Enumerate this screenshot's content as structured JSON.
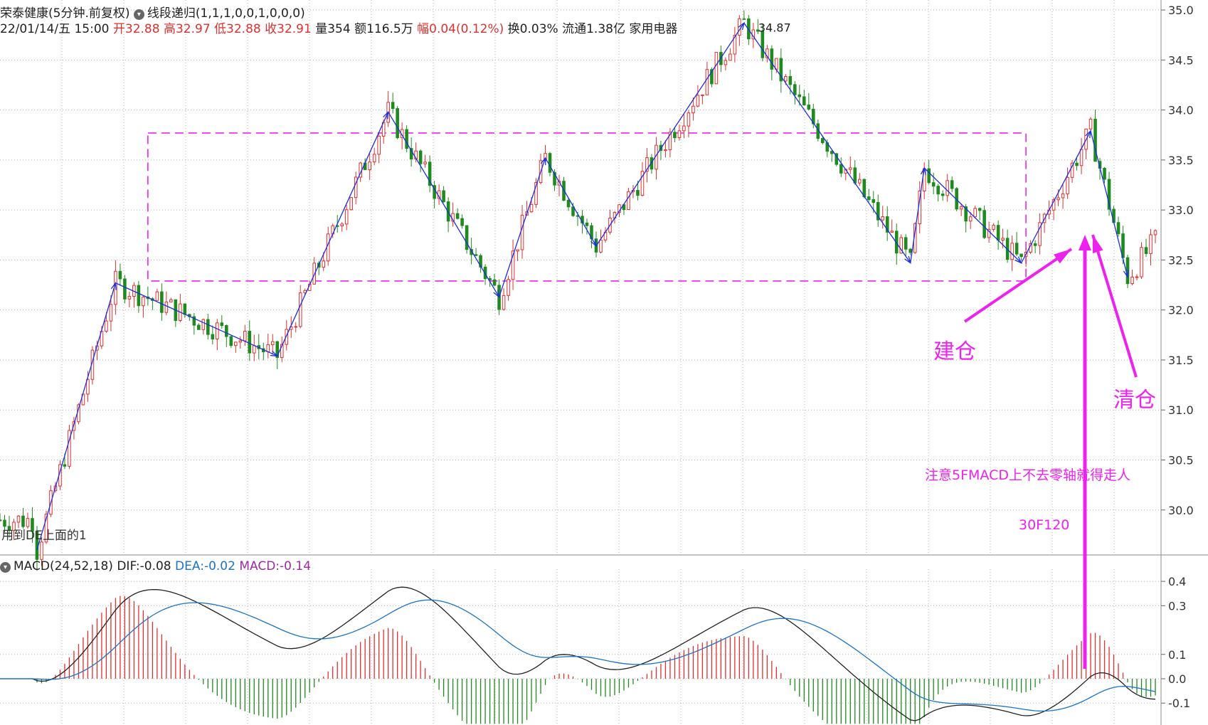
{
  "header": {
    "name": "荣泰健康",
    "period": "(5分钟.前复权)",
    "indicator": "线段递归(1,1,1,0,0,1,0,0,0)",
    "datetime": "22/01/14/五 15:00",
    "open_label": "开",
    "open": "32.88",
    "high_label": "高",
    "high": "32.97",
    "low_label": "低",
    "low": "32.88",
    "close_label": "收",
    "close": "32.91",
    "volume_label": "量",
    "volume": "354",
    "amount_label": "额",
    "amount": "116.5万",
    "change_label": "幅",
    "change": "0.04(0.12%)",
    "turnover_label": "换",
    "turnover": "0.03%",
    "float_label": "流通",
    "float": "1.38亿",
    "sector": "家用电器"
  },
  "macd_header": {
    "title": "MACD(24,52,18)",
    "dif_label": "DIF:",
    "dif": "-0.08",
    "dea_label": "DEA:",
    "dea": "-0.02",
    "macd_label": "MACD:",
    "macd": "-0.14"
  },
  "colors": {
    "up": "#e0302f",
    "down": "#1f8a1f",
    "segment": "#1a2fe0",
    "annotation": "#ee22ee",
    "dif": "#222222",
    "dea": "#1a73c8",
    "grid": "#b0b0b0"
  },
  "chart_data": [
    {
      "type": "candlestick",
      "y_ticks": [
        "35.0",
        "34.5",
        "34.0",
        "33.5",
        "33.0",
        "32.5",
        "32.0",
        "31.5",
        "31.0",
        "30.5",
        "30.0"
      ],
      "ylim": [
        29.55,
        35.1
      ],
      "high_label": "34.87",
      "x_index_range": [
        0,
        250
      ],
      "segment_pivots": [
        {
          "i": 8,
          "v": 29.6
        },
        {
          "i": 25,
          "v": 32.27
        },
        {
          "i": 60,
          "v": 31.54
        },
        {
          "i": 84,
          "v": 33.98
        },
        {
          "i": 108,
          "v": 32.13
        },
        {
          "i": 118,
          "v": 33.52
        },
        {
          "i": 129,
          "v": 32.64
        },
        {
          "i": 161,
          "v": 34.87
        },
        {
          "i": 197,
          "v": 32.47
        },
        {
          "i": 200,
          "v": 33.42
        },
        {
          "i": 221,
          "v": 32.47
        },
        {
          "i": 236,
          "v": 33.79
        },
        {
          "i": 244,
          "v": 32.33
        }
      ],
      "consolidation_zone": {
        "i_start": 32,
        "i_end": 222,
        "top": 33.77,
        "bottom": 32.29
      },
      "annotations": {
        "buy": "建仓",
        "sell": "清仓",
        "note": "注意5FMACD上不去零轴就得走人",
        "tag": "30F120",
        "bottom_left": "用到DE上面的1"
      }
    },
    {
      "type": "macd",
      "y_ticks": [
        "0.4",
        "0.3",
        "0.1",
        "0.0",
        "-0.1"
      ],
      "ylim": [
        -0.19,
        0.45
      ]
    }
  ]
}
